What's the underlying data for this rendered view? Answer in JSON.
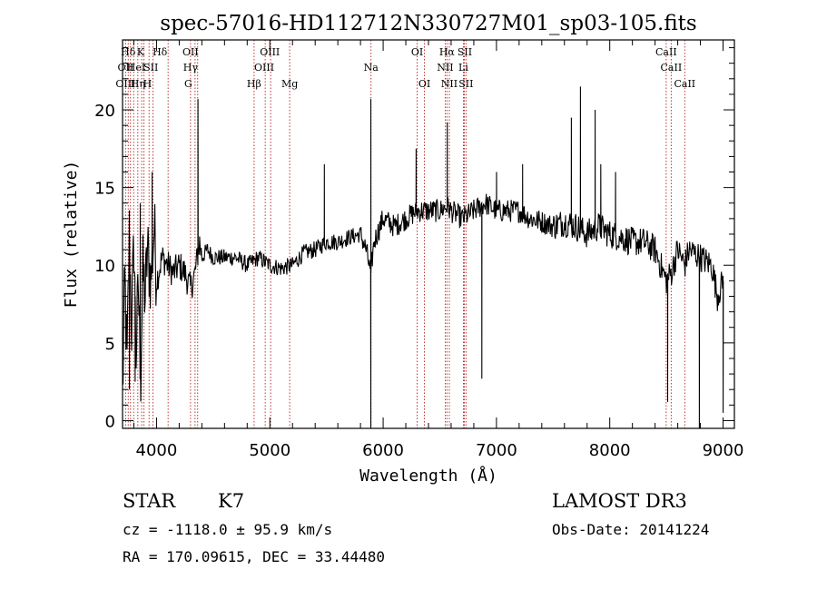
{
  "chart_data": {
    "type": "line",
    "title": "spec-57016-HD112712N330727M01_sp03-105.fits",
    "xlabel": "Wavelength (Å)",
    "ylabel": "Flux (relative)",
    "xlim": [
      3700,
      9100
    ],
    "ylim": [
      -0.5,
      24.5
    ],
    "xticks": [
      4000,
      5000,
      6000,
      7000,
      8000,
      9000
    ],
    "yticks": [
      0,
      5,
      10,
      15,
      20
    ],
    "grid": false,
    "line_color": "#000000",
    "marker_color": "#b22222",
    "spectrum_knots": [
      [
        3700,
        1.5
      ],
      [
        3720,
        9.0
      ],
      [
        3740,
        3.5
      ],
      [
        3760,
        12.0
      ],
      [
        3780,
        6.0
      ],
      [
        3800,
        11.5
      ],
      [
        3820,
        4.5
      ],
      [
        3840,
        8.5
      ],
      [
        3860,
        3.0
      ],
      [
        3880,
        9.5
      ],
      [
        3900,
        8.0
      ],
      [
        3920,
        11.0
      ],
      [
        3950,
        9.0
      ],
      [
        3980,
        12.5
      ],
      [
        4000,
        9.0
      ],
      [
        4050,
        10.5
      ],
      [
        4100,
        10.0
      ],
      [
        4150,
        9.5
      ],
      [
        4200,
        10.0
      ],
      [
        4250,
        9.5
      ],
      [
        4300,
        8.5
      ],
      [
        4340,
        9.5
      ],
      [
        4380,
        11.5
      ],
      [
        4400,
        10.5
      ],
      [
        4450,
        11.0
      ],
      [
        4500,
        10.5
      ],
      [
        4600,
        10.5
      ],
      [
        4700,
        10.5
      ],
      [
        4800,
        10.0
      ],
      [
        4900,
        10.5
      ],
      [
        5000,
        10.0
      ],
      [
        5100,
        9.8
      ],
      [
        5200,
        10.0
      ],
      [
        5300,
        10.8
      ],
      [
        5400,
        11.0
      ],
      [
        5500,
        11.5
      ],
      [
        5600,
        11.5
      ],
      [
        5700,
        11.8
      ],
      [
        5800,
        12.0
      ],
      [
        5850,
        11.0
      ],
      [
        5890,
        9.5
      ],
      [
        5920,
        11.5
      ],
      [
        6000,
        13.0
      ],
      [
        6100,
        12.5
      ],
      [
        6200,
        13.0
      ],
      [
        6300,
        13.5
      ],
      [
        6400,
        13.5
      ],
      [
        6500,
        13.5
      ],
      [
        6563,
        13.8
      ],
      [
        6600,
        13.5
      ],
      [
        6700,
        13.0
      ],
      [
        6800,
        13.5
      ],
      [
        6900,
        14.0
      ],
      [
        7000,
        13.5
      ],
      [
        7100,
        13.5
      ],
      [
        7200,
        13.5
      ],
      [
        7300,
        13.0
      ],
      [
        7400,
        12.8
      ],
      [
        7500,
        12.5
      ],
      [
        7600,
        12.8
      ],
      [
        7700,
        12.5
      ],
      [
        7800,
        12.0
      ],
      [
        7900,
        12.5
      ],
      [
        8000,
        12.0
      ],
      [
        8100,
        11.8
      ],
      [
        8200,
        11.5
      ],
      [
        8300,
        11.5
      ],
      [
        8400,
        11.0
      ],
      [
        8498,
        9.0
      ],
      [
        8542,
        9.5
      ],
      [
        8600,
        11.0
      ],
      [
        8662,
        10.0
      ],
      [
        8700,
        11.0
      ],
      [
        8800,
        10.5
      ],
      [
        8900,
        10.0
      ],
      [
        8950,
        8.0
      ],
      [
        9000,
        9.0
      ]
    ],
    "spectrum_spikes": [
      [
        3760,
        2.0
      ],
      [
        3810,
        2.5
      ],
      [
        3855,
        14.0
      ],
      [
        3960,
        16.0
      ],
      [
        4365,
        20.7
      ],
      [
        5480,
        16.5
      ],
      [
        5890,
        20.7
      ],
      [
        5890,
        -0.5
      ],
      [
        6290,
        17.5
      ],
      [
        6565,
        19.2
      ],
      [
        6870,
        2.7
      ],
      [
        7000,
        16.0
      ],
      [
        7230,
        16.5
      ],
      [
        7660,
        19.5
      ],
      [
        7740,
        21.5
      ],
      [
        7870,
        20.0
      ],
      [
        7920,
        16.5
      ],
      [
        8050,
        16.0
      ],
      [
        8510,
        1.2
      ],
      [
        8790,
        -0.5
      ],
      [
        9000,
        0.5
      ]
    ],
    "annotations": [
      {
        "text": "Hδ",
        "x": 3750,
        "row": 0
      },
      {
        "text": "OII",
        "x": 3727,
        "row": 1
      },
      {
        "text": "OIII",
        "x": 3727,
        "row": 2
      },
      {
        "text": "K",
        "x": 3860,
        "row": 0
      },
      {
        "text": "HeI",
        "x": 3820,
        "row": 1
      },
      {
        "text": "Hη",
        "x": 3835,
        "row": 2
      },
      {
        "text": "Hδ",
        "x": 4030,
        "row": 0
      },
      {
        "text": "SII",
        "x": 3950,
        "row": 1
      },
      {
        "text": "H",
        "x": 3920,
        "row": 2
      },
      {
        "text": "OII",
        "x": 4300,
        "row": 0
      },
      {
        "text": "Hγ",
        "x": 4300,
        "row": 1
      },
      {
        "text": "G",
        "x": 4280,
        "row": 2
      },
      {
        "text": "OIII",
        "x": 5000,
        "row": 0
      },
      {
        "text": "OIII",
        "x": 4950,
        "row": 1
      },
      {
        "text": "Hβ",
        "x": 4861,
        "row": 2
      },
      {
        "text": "Mg",
        "x": 5175,
        "row": 2
      },
      {
        "text": "Na",
        "x": 5893,
        "row": 1
      },
      {
        "text": "OI",
        "x": 6300,
        "row": 0
      },
      {
        "text": "OI",
        "x": 6364,
        "row": 2
      },
      {
        "text": "Hα",
        "x": 6563,
        "row": 0
      },
      {
        "text": "NII",
        "x": 6548,
        "row": 1
      },
      {
        "text": "NII",
        "x": 6584,
        "row": 2
      },
      {
        "text": "SII",
        "x": 6720,
        "row": 0
      },
      {
        "text": "Li",
        "x": 6708,
        "row": 1
      },
      {
        "text": "SII",
        "x": 6731,
        "row": 2
      },
      {
        "text": "CaII",
        "x": 8498,
        "row": 0
      },
      {
        "text": "CaII",
        "x": 8542,
        "row": 1
      },
      {
        "text": "CaII",
        "x": 8662,
        "row": 2
      }
    ],
    "line_markers": [
      3727,
      3750,
      3770,
      3798,
      3835,
      3869,
      3889,
      3934,
      3969,
      4102,
      4300,
      4340,
      4363,
      4861,
      4959,
      5007,
      5175,
      5893,
      6300,
      6364,
      6548,
      6563,
      6584,
      6708,
      6717,
      6731,
      8498,
      8542,
      8662
    ]
  },
  "info": {
    "object_class": "STAR",
    "subclass": "K7",
    "survey": "LAMOST DR3",
    "velocity": "cz = -1118.0 ± 95.9 km/s",
    "obs_date": "Obs-Date: 20141224",
    "coords": "RA = 170.09615, DEC =  33.44480"
  }
}
